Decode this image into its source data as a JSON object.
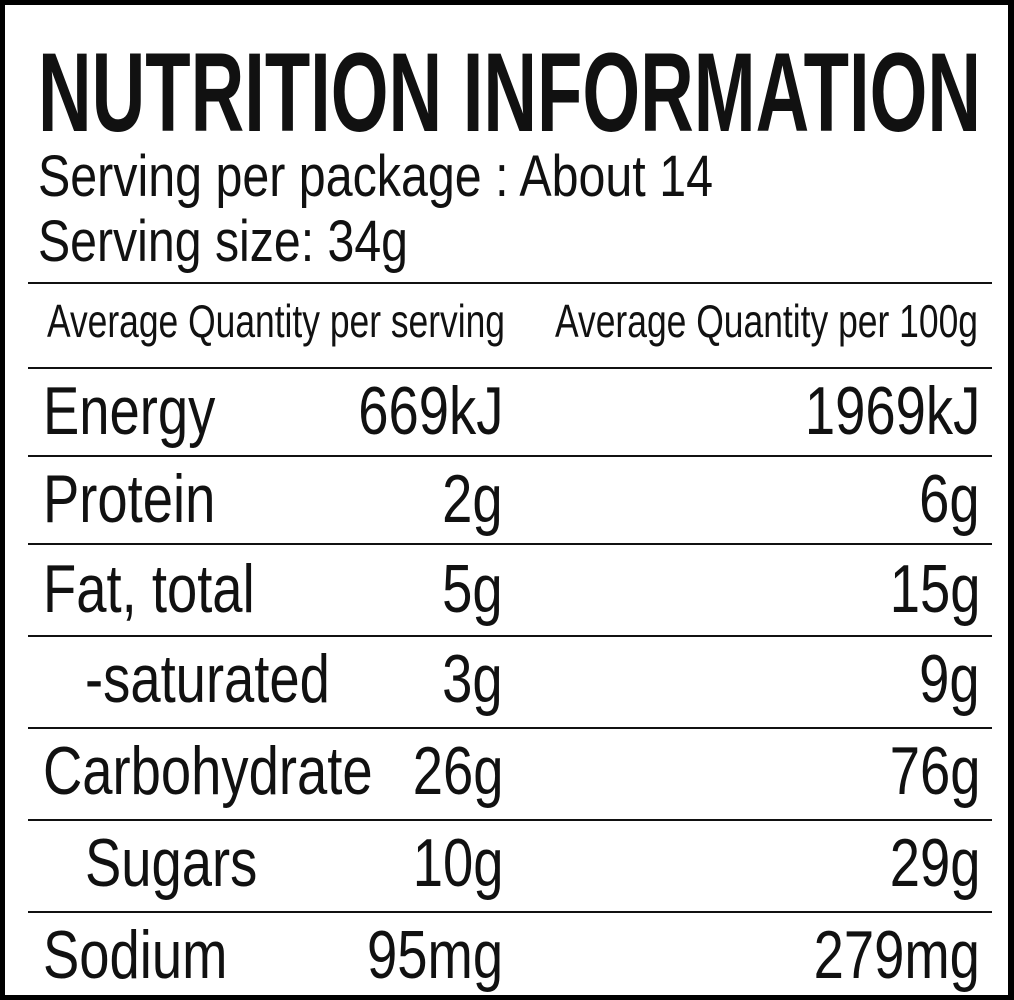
{
  "title": "NUTRITION INFORMATION",
  "servings_per_package": "Serving per package : About 14",
  "serving_size": "Serving size: 34g",
  "columns": [
    "Average Quantity per serving",
    "Average Quantity per 100g"
  ],
  "rows": [
    {
      "name": "Energy",
      "per_serving": "669kJ",
      "per_100g": "1969kJ"
    },
    {
      "name": "Protein",
      "per_serving": "2g",
      "per_100g": "6g"
    },
    {
      "name": "Fat, total",
      "per_serving": "5g",
      "per_100g": "15g"
    },
    {
      "name": "-saturated",
      "per_serving": "3g",
      "per_100g": "9g"
    },
    {
      "name": "Carbohydrate",
      "per_serving": "26g",
      "per_100g": "76g"
    },
    {
      "name": "Sugars",
      "per_serving": "10g",
      "per_100g": "29g"
    },
    {
      "name": "Sodium",
      "per_serving": "95mg",
      "per_100g": "279mg"
    }
  ]
}
